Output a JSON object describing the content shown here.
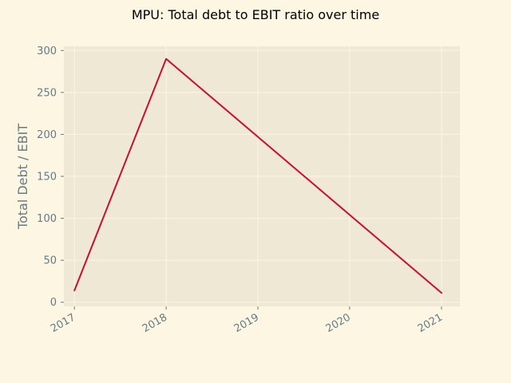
{
  "chart_data": {
    "type": "line",
    "title": "MPU: Total debt to EBIT ratio over time",
    "xlabel": "",
    "ylabel": "Total Debt / EBIT",
    "x": [
      "2017",
      "2018",
      "2019",
      "2020",
      "2021"
    ],
    "series": [
      {
        "points": [
          {
            "x": "2017-01-01",
            "y": 14
          },
          {
            "x": "2018-01-01",
            "y": 290
          },
          {
            "x": "2021-01-01",
            "y": 11
          }
        ]
      }
    ],
    "xlim": [
      "2016-11-20",
      "2021-03-15"
    ],
    "ylim": [
      -5,
      305
    ],
    "yticks": [
      0,
      50,
      100,
      150,
      200,
      250,
      300
    ],
    "xticks": [
      "2017",
      "2018",
      "2019",
      "2020",
      "2021"
    ],
    "grid": true,
    "legend": "none",
    "colors": {
      "background": "#fdf6e3",
      "plot_background": "#eee8d5",
      "grid": "#fdf6e3",
      "line": "#c8102e",
      "text": "#657b83",
      "title": "#000000"
    }
  }
}
